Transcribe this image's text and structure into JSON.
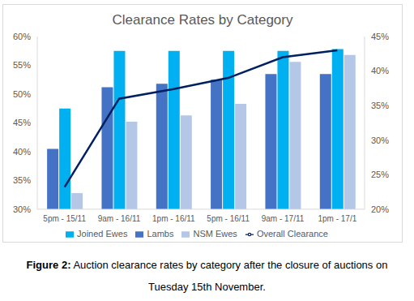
{
  "chart_data": {
    "type": "bar",
    "title": "Clearance Rates by Category",
    "categories": [
      "5pm - 15/11",
      "9am - 16/11",
      "1pm - 16/11",
      "5pm - 16/11",
      "9am - 17/11",
      "1pm - 17/1"
    ],
    "series": [
      {
        "name": "Lambs",
        "color": "#4472c4",
        "values": [
          40.5,
          51.2,
          51.8,
          52.5,
          53.5,
          53.5
        ]
      },
      {
        "name": "Joined Ewes",
        "color": "#00b0f0",
        "values": [
          47.5,
          57.5,
          57.5,
          57.5,
          57.5,
          57.8
        ]
      },
      {
        "name": "NSM Ewes",
        "color": "#b4c7e7",
        "values": [
          32.8,
          45.2,
          46.3,
          48.3,
          55.6,
          56.8
        ]
      },
      {
        "name": "Overall Clearance",
        "color": "#002060",
        "type": "line",
        "axis": "y2",
        "values": [
          23.2,
          36.0,
          37.4,
          39.0,
          42.0,
          43.0
        ]
      }
    ],
    "ylim": [
      30,
      60
    ],
    "yticks": [
      {
        "value": 30,
        "label": "30%"
      },
      {
        "value": 35,
        "label": "35%"
      },
      {
        "value": 40,
        "label": "40%"
      },
      {
        "value": 45,
        "label": "45%"
      },
      {
        "value": 50,
        "label": "50%"
      },
      {
        "value": 55,
        "label": "55%"
      },
      {
        "value": 60,
        "label": "60%"
      }
    ],
    "y2lim": [
      20,
      45
    ],
    "y2ticks": [
      {
        "value": 20,
        "label": "20%"
      },
      {
        "value": 25,
        "label": "25%"
      },
      {
        "value": 30,
        "label": "30%"
      },
      {
        "value": 35,
        "label": "35%"
      },
      {
        "value": 40,
        "label": "40%"
      },
      {
        "value": 45,
        "label": "45%"
      }
    ],
    "grid": false,
    "legend": "bottom"
  },
  "caption": {
    "label": "Figure 2:",
    "text": "Auction clearance rates by category after the closure of auctions on Tuesday 15th November."
  }
}
